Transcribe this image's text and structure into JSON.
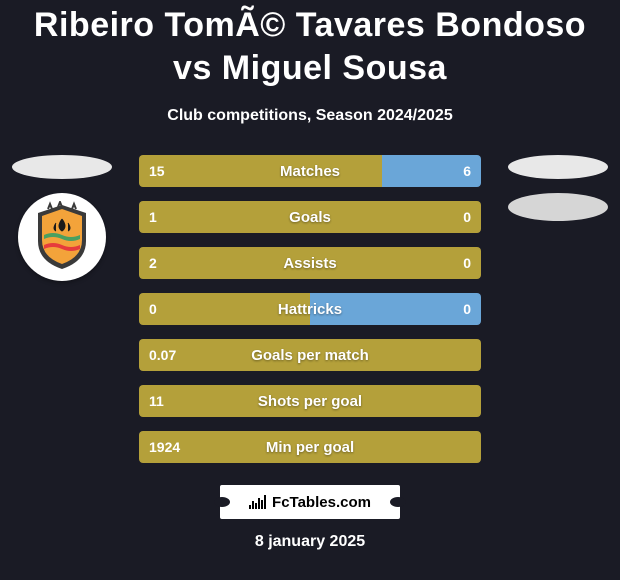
{
  "title": "Ribeiro TomÃ© Tavares Bondoso vs Miguel Sousa",
  "subtitle": "Club competitions, Season 2024/2025",
  "footer_date": "8 january 2025",
  "attribution": "FcTables.com",
  "colors": {
    "left_bar": "#b4a03a",
    "right_bar": "#6aa6d8",
    "track": "#202030",
    "ellipse_left": "#e8e8e8",
    "ellipse_right_1": "#e8e8e8",
    "ellipse_right_2": "#d6d6d6"
  },
  "rows": [
    {
      "label": "Matches",
      "lval": "15",
      "rval": "6",
      "lw": 71,
      "rw": 29
    },
    {
      "label": "Goals",
      "lval": "1",
      "rval": "0",
      "lw": 100,
      "rw": 0
    },
    {
      "label": "Assists",
      "lval": "2",
      "rval": "0",
      "lw": 100,
      "rw": 0
    },
    {
      "label": "Hattricks",
      "lval": "0",
      "rval": "0",
      "lw": 50,
      "rw": 50
    },
    {
      "label": "Goals per match",
      "lval": "0.07",
      "rval": "",
      "lw": 100,
      "rw": 0
    },
    {
      "label": "Shots per goal",
      "lval": "11",
      "rval": "",
      "lw": 100,
      "rw": 0
    },
    {
      "label": "Min per goal",
      "lval": "1924",
      "rval": "",
      "lw": 100,
      "rw": 0
    }
  ],
  "left_badge_svg_colors": {
    "shield_outer": "#3a3a3a",
    "shield_inner": "#f3a33a",
    "wave_top": "#4aa060",
    "wave_bottom": "#e63c3c",
    "flame": "#1a1a1a"
  }
}
